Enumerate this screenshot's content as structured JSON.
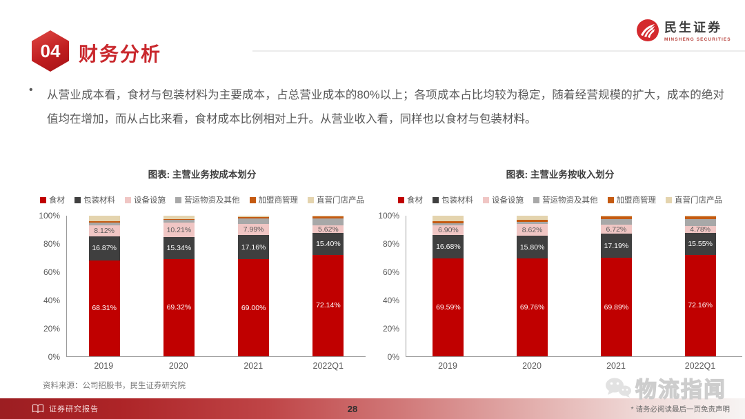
{
  "header": {
    "badge": "04",
    "title": "财务分析",
    "logo_cn": "民生证券",
    "logo_en": "MINSHENG SECURITIES",
    "accent_color": "#c9282d"
  },
  "body": {
    "bullet": "•",
    "paragraph": "从营业成本看，食材与包装材料为主要成本，占总营业成本的80%以上；各项成本占比均较为稳定，随着经营规模的扩大，成本的绝对值均在增加，而从占比来看，食材成本比例相对上升。从营业收入看，同样也以食材与包装材料。",
    "source": "资料来源：公司招股书，民生证券研究院"
  },
  "chart_data": [
    {
      "type": "bar",
      "stacked": true,
      "title": "图表: 主营业务按成本划分",
      "categories": [
        "2019",
        "2020",
        "2021",
        "2022Q1"
      ],
      "y_ticks": [
        "100%",
        "80%",
        "60%",
        "40%",
        "20%",
        "0%"
      ],
      "ylim": [
        0,
        100
      ],
      "grid": false,
      "legend_position": "top",
      "series": [
        {
          "name": "食材",
          "color": "#c00000",
          "label_color": "#ffffff",
          "values": [
            68.31,
            69.32,
            69.0,
            72.14
          ],
          "labels": [
            "68.31%",
            "69.32%",
            "69.00%",
            "72.14%"
          ]
        },
        {
          "name": "包装材料",
          "color": "#3f3f3f",
          "label_color": "#ffffff",
          "values": [
            16.87,
            15.34,
            17.16,
            15.4
          ],
          "labels": [
            "16.87%",
            "15.34%",
            "17.16%",
            "15.40%"
          ]
        },
        {
          "name": "设备设施",
          "color": "#f0c6c4",
          "label_color": "#595959",
          "values": [
            8.12,
            10.21,
            7.99,
            5.62
          ],
          "labels": [
            "8.12%",
            "10.21%",
            "7.99%",
            "5.62%"
          ]
        },
        {
          "name": "营运物资及其他",
          "color": "#a8a8a8",
          "values": [
            2.0,
            2.3,
            4.0,
            5.0
          ]
        },
        {
          "name": "加盟商管理",
          "color": "#c55a11",
          "values": [
            0.7,
            0.6,
            1.0,
            1.2
          ]
        },
        {
          "name": "直营门店产品",
          "color": "#e4d4ae",
          "values": [
            4.0,
            2.23,
            0.85,
            0.64
          ]
        }
      ]
    },
    {
      "type": "bar",
      "stacked": true,
      "title": "图表: 主营业务按收入划分",
      "categories": [
        "2019",
        "2020",
        "2021",
        "2022Q1"
      ],
      "y_ticks": [
        "100%",
        "80%",
        "60%",
        "40%",
        "20%",
        "0%"
      ],
      "ylim": [
        0,
        100
      ],
      "grid": false,
      "legend_position": "top",
      "series": [
        {
          "name": "食材",
          "color": "#c00000",
          "label_color": "#ffffff",
          "values": [
            69.59,
            69.76,
            69.89,
            72.16
          ],
          "labels": [
            "69.59%",
            "69.76%",
            "69.89%",
            "72.16%"
          ]
        },
        {
          "name": "包装材料",
          "color": "#3f3f3f",
          "label_color": "#ffffff",
          "values": [
            16.68,
            15.8,
            17.19,
            15.55
          ],
          "labels": [
            "16.68%",
            "15.80%",
            "17.19%",
            "15.55%"
          ]
        },
        {
          "name": "设备设施",
          "color": "#f0c6c4",
          "label_color": "#595959",
          "values": [
            6.9,
            8.62,
            6.72,
            4.78
          ],
          "labels": [
            "6.90%",
            "8.62%",
            "6.72%",
            "4.78%"
          ]
        },
        {
          "name": "营运物资及其他",
          "color": "#a8a8a8",
          "values": [
            1.5,
            1.4,
            4.0,
            5.0
          ]
        },
        {
          "name": "加盟商管理",
          "color": "#c55a11",
          "values": [
            1.5,
            1.5,
            1.7,
            2.0
          ]
        },
        {
          "name": "直营门店产品",
          "color": "#e4d4ae",
          "values": [
            3.83,
            2.92,
            0.5,
            0.51
          ]
        }
      ]
    }
  ],
  "watermark": {
    "icon": "wechat-icon",
    "text": "物流指闻"
  },
  "footer": {
    "left_icon": "book-icon",
    "left_label": "证券研究报告",
    "page": "28",
    "disclaimer": "* 请务必阅读最后一页免责声明"
  }
}
